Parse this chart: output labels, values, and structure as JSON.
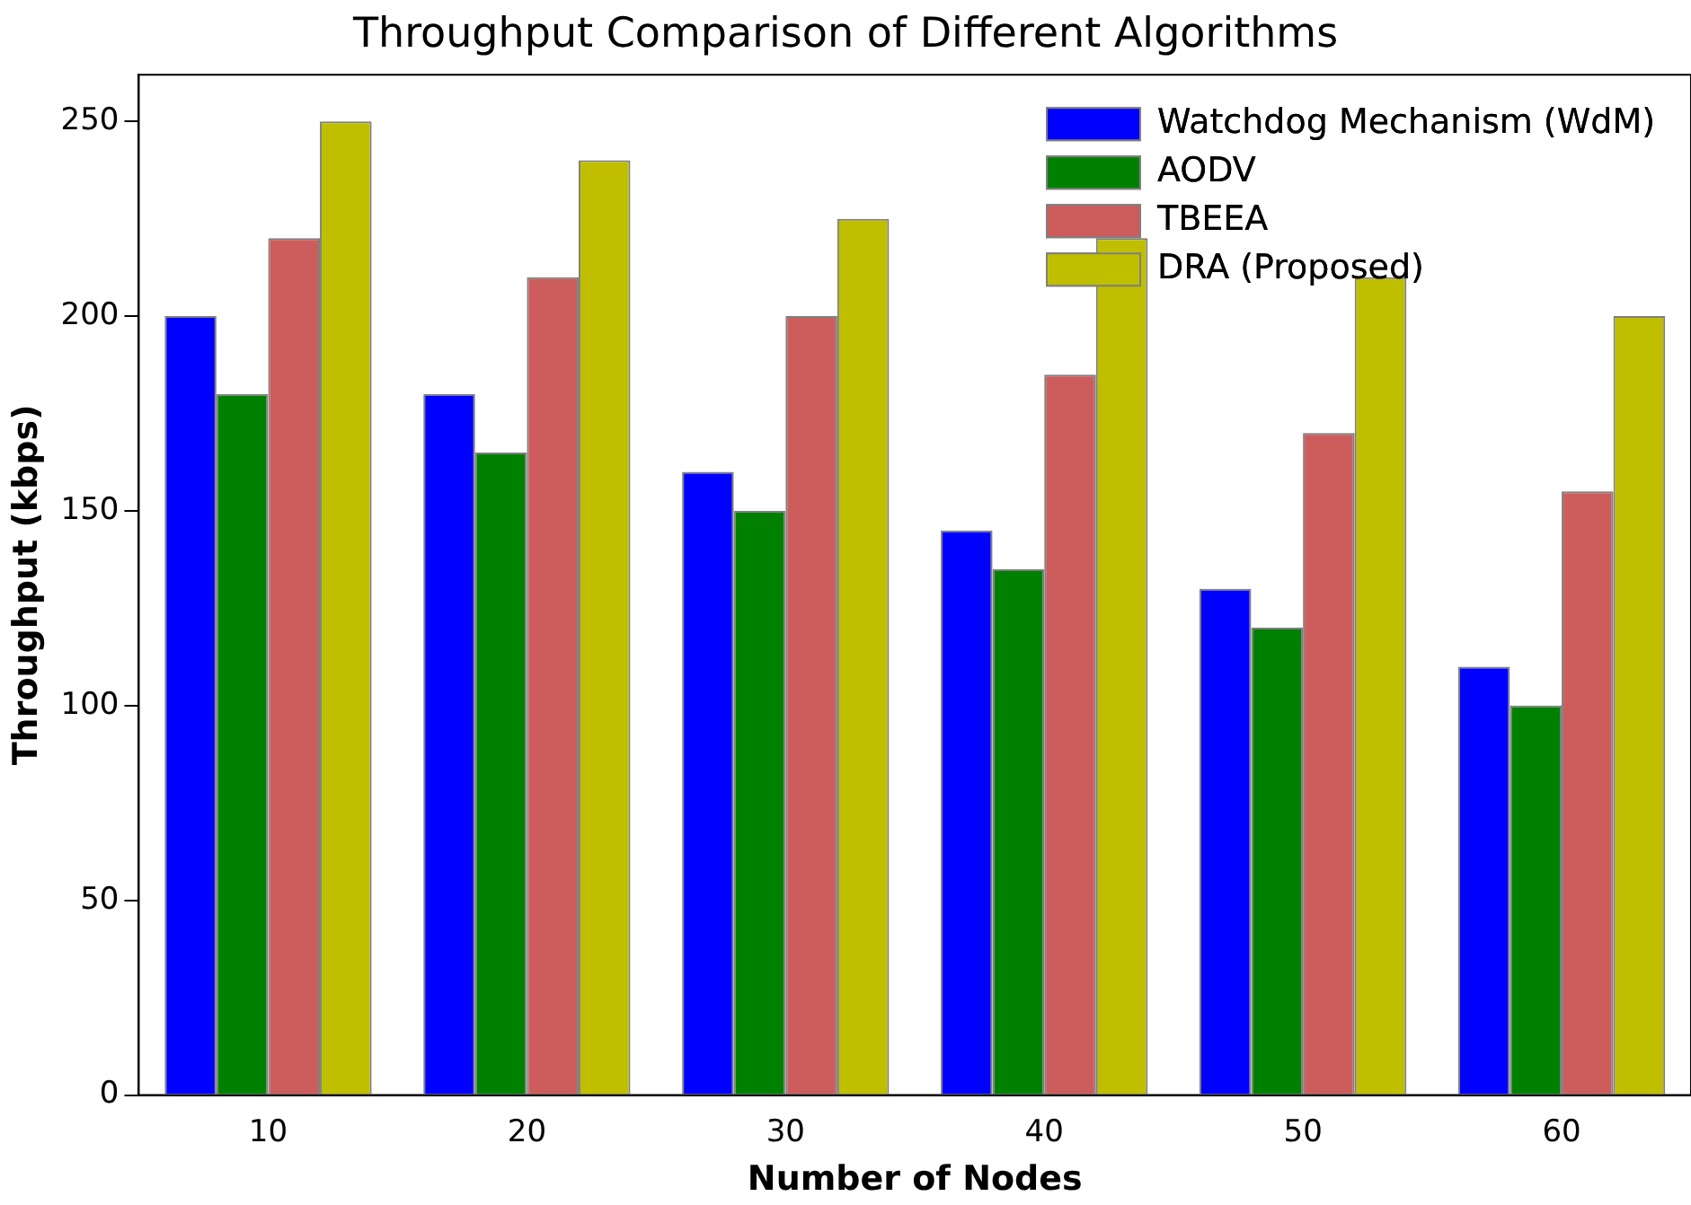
{
  "chart_data": {
    "type": "bar",
    "title": "Throughput Comparison of Different Algorithms",
    "xlabel": "Number of Nodes",
    "ylabel": "Throughput (kbps)",
    "categories": [
      "10",
      "20",
      "30",
      "40",
      "50",
      "60"
    ],
    "series": [
      {
        "name": "Watchdog Mechanism (WdM)",
        "color": "#0000ff",
        "values": [
          200,
          180,
          160,
          145,
          130,
          110
        ]
      },
      {
        "name": "AODV",
        "color": "#008000",
        "values": [
          180,
          165,
          150,
          135,
          120,
          100
        ]
      },
      {
        "name": "TBEEA",
        "color": "#cd5c5c",
        "values": [
          220,
          210,
          200,
          185,
          170,
          155
        ]
      },
      {
        "name": "DRA (Proposed)",
        "color": "#bfbf00",
        "values": [
          250,
          240,
          225,
          220,
          210,
          200
        ]
      }
    ],
    "ylim": [
      0,
      262
    ],
    "yticks": [
      0,
      50,
      100,
      150,
      200,
      250
    ],
    "grid": false,
    "legend": "top right"
  }
}
